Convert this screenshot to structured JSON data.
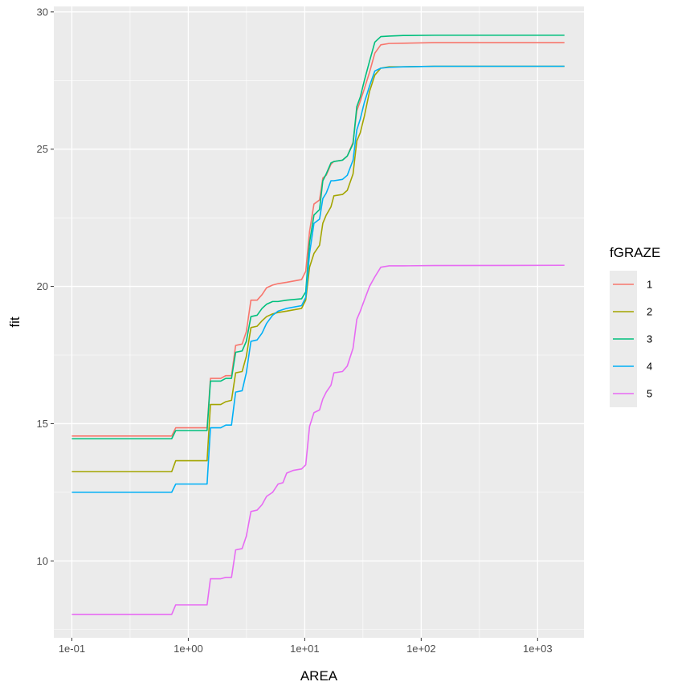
{
  "chart_data": {
    "type": "line",
    "xlabel": "AREA",
    "ylabel": "fit",
    "x_scale": "log10",
    "xlim": [
      0.07,
      2500
    ],
    "ylim": [
      7.2,
      30.2
    ],
    "x_ticks": [
      {
        "value": 0.1,
        "label": "1e-01"
      },
      {
        "value": 1,
        "label": "1e+00"
      },
      {
        "value": 10,
        "label": "1e+01"
      },
      {
        "value": 100,
        "label": "1e+02"
      },
      {
        "value": 1000,
        "label": "1e+03"
      }
    ],
    "y_ticks": [
      {
        "value": 10,
        "label": "10"
      },
      {
        "value": 15,
        "label": "15"
      },
      {
        "value": 20,
        "label": "20"
      },
      {
        "value": 25,
        "label": "25"
      },
      {
        "value": 30,
        "label": "30"
      }
    ],
    "grid": true,
    "legend": {
      "title": "fGRAZE",
      "position": "right"
    },
    "series": [
      {
        "name": "1",
        "color": "#F8766D",
        "points": [
          [
            0.1,
            14.55
          ],
          [
            0.72,
            14.55
          ],
          [
            0.78,
            14.85
          ],
          [
            1.45,
            14.85
          ],
          [
            1.55,
            16.65
          ],
          [
            1.9,
            16.65
          ],
          [
            2.1,
            16.75
          ],
          [
            2.35,
            16.75
          ],
          [
            2.55,
            17.85
          ],
          [
            2.9,
            17.9
          ],
          [
            3.15,
            18.35
          ],
          [
            3.45,
            19.5
          ],
          [
            3.9,
            19.5
          ],
          [
            4.3,
            19.7
          ],
          [
            4.7,
            19.95
          ],
          [
            5.3,
            20.05
          ],
          [
            5.9,
            20.1
          ],
          [
            7.0,
            20.15
          ],
          [
            9.4,
            20.25
          ],
          [
            10.2,
            20.55
          ],
          [
            11.0,
            22.0
          ],
          [
            12.0,
            23.0
          ],
          [
            13.4,
            23.15
          ],
          [
            14.3,
            23.95
          ],
          [
            15.3,
            24.05
          ],
          [
            16.8,
            24.45
          ],
          [
            17.8,
            24.55
          ],
          [
            21.1,
            24.6
          ],
          [
            23.2,
            24.75
          ],
          [
            26.0,
            25.25
          ],
          [
            28.0,
            26.4
          ],
          [
            30.0,
            26.75
          ],
          [
            32.5,
            27.2
          ],
          [
            36.0,
            27.8
          ],
          [
            40.0,
            28.5
          ],
          [
            45.0,
            28.8
          ],
          [
            53.0,
            28.85
          ],
          [
            70.0,
            28.86
          ],
          [
            130.0,
            28.88
          ],
          [
            1700.0,
            28.88
          ]
        ]
      },
      {
        "name": "2",
        "color": "#A3A500",
        "points": [
          [
            0.1,
            13.25
          ],
          [
            0.72,
            13.25
          ],
          [
            0.78,
            13.65
          ],
          [
            1.45,
            13.65
          ],
          [
            1.55,
            15.7
          ],
          [
            1.9,
            15.7
          ],
          [
            2.1,
            15.8
          ],
          [
            2.35,
            15.85
          ],
          [
            2.55,
            16.85
          ],
          [
            2.9,
            16.9
          ],
          [
            3.15,
            17.45
          ],
          [
            3.45,
            18.5
          ],
          [
            3.9,
            18.55
          ],
          [
            4.3,
            18.75
          ],
          [
            4.7,
            18.9
          ],
          [
            5.3,
            19.0
          ],
          [
            5.9,
            19.05
          ],
          [
            7.0,
            19.1
          ],
          [
            9.4,
            19.2
          ],
          [
            10.2,
            19.5
          ],
          [
            11.0,
            20.7
          ],
          [
            12.0,
            21.2
          ],
          [
            13.4,
            21.5
          ],
          [
            14.3,
            22.3
          ],
          [
            15.3,
            22.6
          ],
          [
            16.8,
            22.9
          ],
          [
            17.8,
            23.3
          ],
          [
            21.1,
            23.35
          ],
          [
            23.2,
            23.5
          ],
          [
            26.0,
            24.1
          ],
          [
            28.0,
            25.3
          ],
          [
            30.0,
            25.6
          ],
          [
            32.5,
            26.2
          ],
          [
            36.0,
            27.1
          ],
          [
            40.0,
            27.7
          ],
          [
            45.0,
            27.95
          ],
          [
            53.0,
            28.0
          ],
          [
            70.0,
            28.0
          ],
          [
            130.0,
            28.02
          ],
          [
            1700.0,
            28.02
          ]
        ]
      },
      {
        "name": "3",
        "color": "#00BF7D",
        "points": [
          [
            0.1,
            14.45
          ],
          [
            0.72,
            14.45
          ],
          [
            0.78,
            14.75
          ],
          [
            1.45,
            14.75
          ],
          [
            1.55,
            16.55
          ],
          [
            1.9,
            16.55
          ],
          [
            2.1,
            16.65
          ],
          [
            2.35,
            16.65
          ],
          [
            2.55,
            17.6
          ],
          [
            2.9,
            17.65
          ],
          [
            3.15,
            18.0
          ],
          [
            3.45,
            18.9
          ],
          [
            3.9,
            18.95
          ],
          [
            4.3,
            19.2
          ],
          [
            4.7,
            19.35
          ],
          [
            5.3,
            19.45
          ],
          [
            5.9,
            19.45
          ],
          [
            7.0,
            19.5
          ],
          [
            9.4,
            19.55
          ],
          [
            10.2,
            19.8
          ],
          [
            11.0,
            21.6
          ],
          [
            12.0,
            22.6
          ],
          [
            13.4,
            22.8
          ],
          [
            14.3,
            23.85
          ],
          [
            15.3,
            24.1
          ],
          [
            16.8,
            24.5
          ],
          [
            17.8,
            24.55
          ],
          [
            21.1,
            24.6
          ],
          [
            23.2,
            24.75
          ],
          [
            26.0,
            25.2
          ],
          [
            28.0,
            26.55
          ],
          [
            30.0,
            26.9
          ],
          [
            32.5,
            27.5
          ],
          [
            36.0,
            28.2
          ],
          [
            40.0,
            28.9
          ],
          [
            45.0,
            29.1
          ],
          [
            53.0,
            29.12
          ],
          [
            70.0,
            29.14
          ],
          [
            130.0,
            29.15
          ],
          [
            1700.0,
            29.15
          ]
        ]
      },
      {
        "name": "4",
        "color": "#00B0F6",
        "points": [
          [
            0.1,
            12.5
          ],
          [
            0.72,
            12.5
          ],
          [
            0.78,
            12.8
          ],
          [
            1.45,
            12.8
          ],
          [
            1.55,
            14.85
          ],
          [
            1.9,
            14.85
          ],
          [
            2.1,
            14.95
          ],
          [
            2.35,
            14.95
          ],
          [
            2.55,
            16.15
          ],
          [
            2.9,
            16.2
          ],
          [
            3.15,
            16.85
          ],
          [
            3.45,
            18.0
          ],
          [
            3.9,
            18.05
          ],
          [
            4.3,
            18.3
          ],
          [
            4.7,
            18.65
          ],
          [
            5.3,
            18.95
          ],
          [
            5.9,
            19.1
          ],
          [
            7.0,
            19.2
          ],
          [
            9.4,
            19.3
          ],
          [
            10.2,
            19.6
          ],
          [
            11.0,
            21.2
          ],
          [
            12.0,
            22.3
          ],
          [
            13.4,
            22.45
          ],
          [
            14.3,
            23.2
          ],
          [
            15.3,
            23.4
          ],
          [
            16.8,
            23.85
          ],
          [
            17.8,
            23.85
          ],
          [
            21.1,
            23.9
          ],
          [
            23.2,
            24.05
          ],
          [
            26.0,
            24.6
          ],
          [
            28.0,
            25.7
          ],
          [
            30.0,
            26.1
          ],
          [
            32.5,
            26.7
          ],
          [
            36.0,
            27.3
          ],
          [
            40.0,
            27.85
          ],
          [
            45.0,
            27.95
          ],
          [
            53.0,
            27.98
          ],
          [
            70.0,
            28.0
          ],
          [
            130.0,
            28.02
          ],
          [
            1700.0,
            28.02
          ]
        ]
      },
      {
        "name": "5",
        "color": "#E76BF3",
        "points": [
          [
            0.1,
            8.05
          ],
          [
            0.72,
            8.05
          ],
          [
            0.78,
            8.4
          ],
          [
            1.45,
            8.4
          ],
          [
            1.55,
            9.35
          ],
          [
            1.9,
            9.35
          ],
          [
            2.1,
            9.4
          ],
          [
            2.35,
            9.4
          ],
          [
            2.55,
            10.4
          ],
          [
            2.9,
            10.45
          ],
          [
            3.15,
            10.9
          ],
          [
            3.45,
            11.8
          ],
          [
            3.9,
            11.85
          ],
          [
            4.3,
            12.05
          ],
          [
            4.7,
            12.35
          ],
          [
            5.3,
            12.5
          ],
          [
            5.9,
            12.8
          ],
          [
            6.5,
            12.85
          ],
          [
            7.0,
            13.2
          ],
          [
            8.0,
            13.3
          ],
          [
            9.4,
            13.35
          ],
          [
            10.2,
            13.5
          ],
          [
            11.0,
            14.9
          ],
          [
            12.0,
            15.4
          ],
          [
            13.4,
            15.5
          ],
          [
            14.3,
            15.9
          ],
          [
            15.3,
            16.15
          ],
          [
            16.8,
            16.4
          ],
          [
            17.8,
            16.85
          ],
          [
            21.1,
            16.9
          ],
          [
            23.2,
            17.1
          ],
          [
            26.0,
            17.75
          ],
          [
            28.0,
            18.8
          ],
          [
            30.0,
            19.1
          ],
          [
            32.5,
            19.5
          ],
          [
            36.0,
            20.0
          ],
          [
            40.0,
            20.35
          ],
          [
            45.0,
            20.7
          ],
          [
            53.0,
            20.75
          ],
          [
            70.0,
            20.75
          ],
          [
            130.0,
            20.76
          ],
          [
            1700.0,
            20.77
          ]
        ]
      }
    ]
  }
}
